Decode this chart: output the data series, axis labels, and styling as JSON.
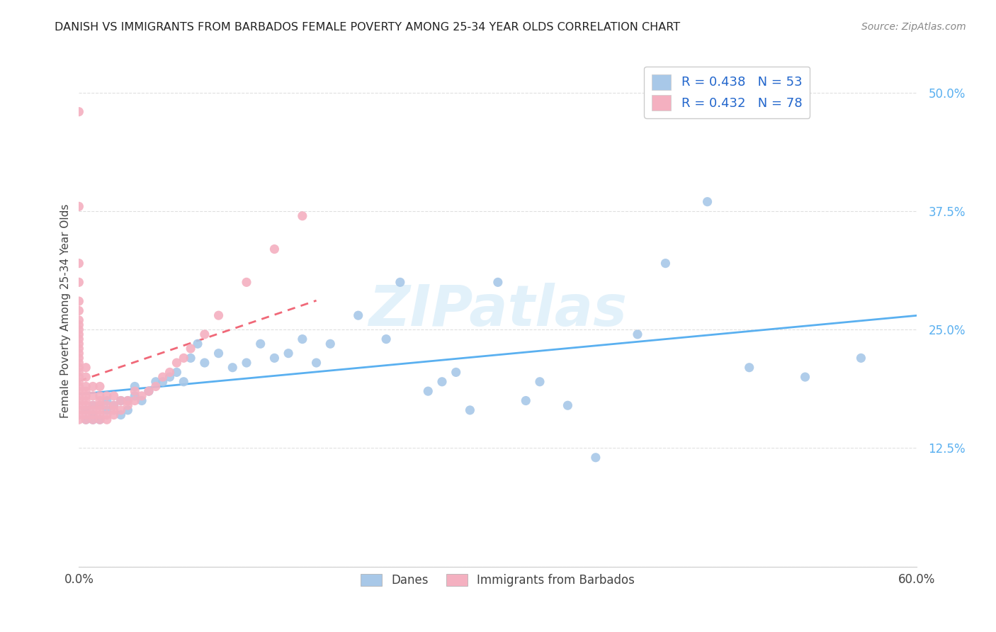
{
  "title": "DANISH VS IMMIGRANTS FROM BARBADOS FEMALE POVERTY AMONG 25-34 YEAR OLDS CORRELATION CHART",
  "source": "Source: ZipAtlas.com",
  "ylabel": "Female Poverty Among 25-34 Year Olds",
  "xlim": [
    0.0,
    0.6
  ],
  "ylim": [
    0.0,
    0.54
  ],
  "xticks": [
    0.0,
    0.1,
    0.2,
    0.3,
    0.4,
    0.5,
    0.6
  ],
  "xticklabels": [
    "0.0%",
    "",
    "",
    "",
    "",
    "",
    "60.0%"
  ],
  "yticks": [
    0.0,
    0.125,
    0.25,
    0.375,
    0.5
  ],
  "yticklabels": [
    "",
    "12.5%",
    "25.0%",
    "37.5%",
    "50.0%"
  ],
  "grid_color": "#e0e0e0",
  "background_color": "#ffffff",
  "watermark": "ZIPatlas",
  "danes_color": "#a8c8e8",
  "barbados_color": "#f4b0c0",
  "danes_line_color": "#5ab0f0",
  "barbados_line_color": "#f06878",
  "danes_label": "Danes",
  "barbados_label": "Immigrants from Barbados",
  "danes_R": 0.438,
  "danes_N": 53,
  "barbados_R": 0.432,
  "barbados_N": 78,
  "danes_scatter_x": [
    0.005,
    0.005,
    0.01,
    0.01,
    0.01,
    0.015,
    0.015,
    0.02,
    0.02,
    0.025,
    0.03,
    0.03,
    0.035,
    0.035,
    0.04,
    0.04,
    0.045,
    0.05,
    0.055,
    0.06,
    0.065,
    0.07,
    0.075,
    0.08,
    0.085,
    0.09,
    0.1,
    0.11,
    0.12,
    0.13,
    0.14,
    0.15,
    0.16,
    0.17,
    0.18,
    0.2,
    0.22,
    0.23,
    0.25,
    0.26,
    0.27,
    0.28,
    0.3,
    0.32,
    0.33,
    0.35,
    0.37,
    0.4,
    0.42,
    0.45,
    0.48,
    0.52,
    0.56
  ],
  "danes_scatter_y": [
    0.155,
    0.165,
    0.155,
    0.16,
    0.17,
    0.155,
    0.17,
    0.165,
    0.175,
    0.17,
    0.16,
    0.175,
    0.165,
    0.175,
    0.18,
    0.19,
    0.175,
    0.185,
    0.195,
    0.195,
    0.2,
    0.205,
    0.195,
    0.22,
    0.235,
    0.215,
    0.225,
    0.21,
    0.215,
    0.235,
    0.22,
    0.225,
    0.24,
    0.215,
    0.235,
    0.265,
    0.24,
    0.3,
    0.185,
    0.195,
    0.205,
    0.165,
    0.3,
    0.175,
    0.195,
    0.17,
    0.115,
    0.245,
    0.32,
    0.385,
    0.21,
    0.2,
    0.22
  ],
  "barbados_scatter_x": [
    0.0,
    0.0,
    0.0,
    0.0,
    0.0,
    0.0,
    0.0,
    0.0,
    0.0,
    0.0,
    0.0,
    0.0,
    0.0,
    0.0,
    0.0,
    0.0,
    0.0,
    0.0,
    0.0,
    0.0,
    0.0,
    0.0,
    0.0,
    0.0,
    0.0,
    0.0,
    0.0,
    0.0,
    0.005,
    0.005,
    0.005,
    0.005,
    0.005,
    0.005,
    0.005,
    0.005,
    0.005,
    0.005,
    0.01,
    0.01,
    0.01,
    0.01,
    0.01,
    0.01,
    0.015,
    0.015,
    0.015,
    0.015,
    0.015,
    0.015,
    0.015,
    0.02,
    0.02,
    0.02,
    0.02,
    0.025,
    0.025,
    0.025,
    0.025,
    0.03,
    0.03,
    0.035,
    0.035,
    0.04,
    0.04,
    0.045,
    0.05,
    0.055,
    0.06,
    0.065,
    0.07,
    0.075,
    0.08,
    0.09,
    0.1,
    0.12,
    0.14,
    0.16
  ],
  "barbados_scatter_y": [
    0.155,
    0.16,
    0.165,
    0.17,
    0.175,
    0.18,
    0.185,
    0.19,
    0.195,
    0.2,
    0.205,
    0.21,
    0.215,
    0.22,
    0.225,
    0.23,
    0.235,
    0.24,
    0.245,
    0.25,
    0.255,
    0.26,
    0.27,
    0.28,
    0.3,
    0.32,
    0.38,
    0.48,
    0.155,
    0.16,
    0.165,
    0.17,
    0.175,
    0.18,
    0.185,
    0.19,
    0.2,
    0.21,
    0.155,
    0.16,
    0.165,
    0.17,
    0.18,
    0.19,
    0.155,
    0.16,
    0.165,
    0.17,
    0.175,
    0.18,
    0.19,
    0.155,
    0.16,
    0.17,
    0.18,
    0.16,
    0.165,
    0.17,
    0.18,
    0.165,
    0.175,
    0.17,
    0.175,
    0.175,
    0.185,
    0.18,
    0.185,
    0.19,
    0.2,
    0.205,
    0.215,
    0.22,
    0.23,
    0.245,
    0.265,
    0.3,
    0.335,
    0.37
  ]
}
